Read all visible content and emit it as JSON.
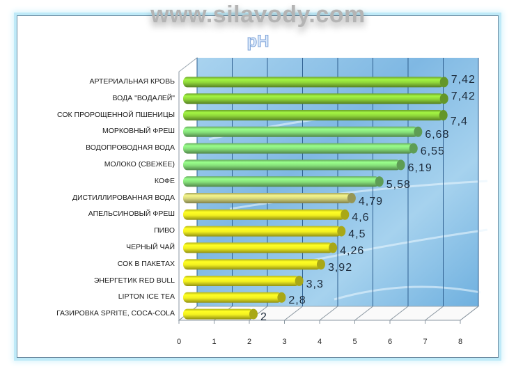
{
  "watermark": "www.silavody.com",
  "chart_data": {
    "type": "bar",
    "orientation": "horizontal",
    "style": "3d-cylinder",
    "title": "pH",
    "xlabel": "",
    "ylabel": "",
    "xlim": [
      0,
      8
    ],
    "x_ticks": [
      "0",
      "1",
      "2",
      "3",
      "4",
      "5",
      "6",
      "7",
      "8"
    ],
    "grid": true,
    "legend": "none",
    "categories": [
      "АРТЕРИАЛЬНАЯ КРОВЬ",
      "ВОДА \"ВОДАЛЕЙ\"",
      "СОК ПРОРОЩЕННОЙ ПШЕНИЦЫ",
      "МОРКОВНЫЙ ФРЕШ",
      "ВОДОПРОВОДНАЯ ВОДА",
      "МОЛОКО (СВЕЖЕЕ)",
      "КОФЕ",
      "ДИСТИЛЛИРОВАННАЯ ВОДА",
      "АПЕЛЬСИНОВЫЙ ФРЕШ",
      "ПИВО",
      "ЧЕРНЫЙ ЧАЙ",
      "СОК В ПАКЕТАХ",
      "ЭНЕРГЕТИК RED BULL",
      "LIPTON ICE TEA",
      "ГАЗИРОВКА SPRITE, COCA-COLA"
    ],
    "values": [
      7.42,
      7.42,
      7.4,
      6.68,
      6.55,
      6.19,
      5.58,
      4.79,
      4.6,
      4.5,
      4.26,
      3.92,
      3.3,
      2.8,
      2.0
    ],
    "data_labels": [
      "7,42",
      "7,42",
      "7,4",
      "6,68",
      "6,55",
      "6,19",
      "5,58",
      "4,79",
      "4,6",
      "4,5",
      "4,26",
      "3,92",
      "3,3",
      "2,8",
      "2"
    ],
    "bar_colors": [
      "#8fd63a",
      "#8fd63a",
      "#8fd63a",
      "#86e07a",
      "#86e07a",
      "#86e07a",
      "#86e07a",
      "#d6d67a",
      "#f2f020",
      "#f2f020",
      "#f2f020",
      "#f2f020",
      "#f2f020",
      "#f2f020",
      "#f2f020"
    ]
  },
  "colors": {
    "frame_glow": "#bfeaf8",
    "title_fill": "#dbe9fb",
    "title_stroke": "#7ea3d8",
    "watermark": "#b4b4b4",
    "back_wall": "#8fc3e6"
  }
}
